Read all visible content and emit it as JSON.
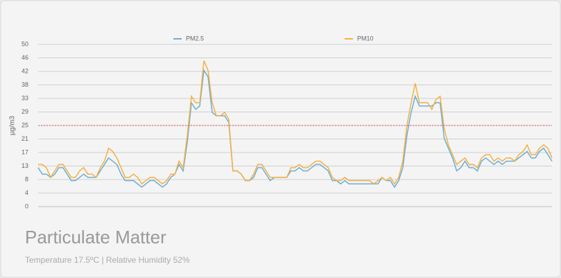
{
  "chart_data": {
    "type": "line",
    "title": "Particulate Matter",
    "subtitle": "Temperature 17.5ºC | Relative Humidity 52%",
    "y_label": "µg/m3",
    "ylim": [
      0,
      50
    ],
    "yticks": [
      0,
      {
        "value": 4.17,
        "label": "4"
      },
      {
        "value": 8.33,
        "label": "8"
      },
      {
        "value": 12.5,
        "label": "13"
      },
      {
        "value": 16.67,
        "label": "17"
      },
      {
        "value": 20.83,
        "label": "21"
      },
      25,
      {
        "value": 29.17,
        "label": "29"
      },
      {
        "value": 33.33,
        "label": "33"
      },
      {
        "value": 37.5,
        "label": "38"
      },
      {
        "value": 41.67,
        "label": "42"
      },
      {
        "value": 45.83,
        "label": "46"
      },
      50
    ],
    "grid": true,
    "threshold": 25,
    "threshold_color": "#d9534f",
    "series": [
      {
        "name": "PM2.5",
        "color": "#6aaed6",
        "values": [
          12,
          10,
          10,
          9,
          10,
          12,
          12,
          10,
          8,
          8,
          9,
          10,
          9,
          9,
          9,
          11,
          13,
          15,
          14,
          13,
          10,
          8,
          8,
          8,
          7,
          6,
          7,
          8,
          8,
          7,
          6,
          7,
          9,
          10,
          13,
          11,
          20,
          32,
          30,
          31,
          42,
          40,
          29,
          28,
          28,
          28,
          26,
          11,
          11,
          10,
          8,
          8,
          9,
          12,
          12,
          10,
          8,
          9,
          9,
          9,
          9,
          11,
          11,
          12,
          11,
          11,
          12,
          13,
          13,
          12,
          11,
          8,
          8,
          7,
          8,
          7,
          7,
          7,
          7,
          7,
          7,
          7,
          7,
          9,
          8,
          8,
          6,
          8,
          12,
          22,
          29,
          34,
          31,
          31,
          31,
          31,
          32,
          32,
          21,
          18,
          15,
          11,
          12,
          14,
          12,
          12,
          11,
          14,
          15,
          14,
          13,
          14,
          13,
          14,
          14,
          14,
          15,
          16,
          17,
          15,
          15,
          17,
          18,
          16,
          14
        ]
      },
      {
        "name": "PM10",
        "color": "#f5b041",
        "values": [
          13,
          13,
          12,
          9,
          11,
          13,
          13,
          11,
          9,
          9,
          11,
          12,
          10,
          10,
          9,
          12,
          14,
          18,
          17,
          15,
          12,
          9,
          9,
          10,
          9,
          7,
          8,
          9,
          9,
          8,
          7,
          8,
          10,
          10,
          14,
          12,
          22,
          34,
          32,
          32,
          45,
          42,
          32,
          28,
          28,
          29,
          27,
          11,
          11,
          10,
          8,
          8,
          10,
          13,
          13,
          11,
          9,
          9,
          9,
          9,
          9,
          12,
          12,
          13,
          12,
          12,
          13,
          14,
          14,
          13,
          12,
          9,
          8,
          8,
          9,
          8,
          8,
          8,
          8,
          8,
          8,
          7,
          8,
          9,
          8,
          9,
          7,
          9,
          14,
          25,
          32,
          38,
          32,
          32,
          32,
          30,
          33,
          34,
          24,
          19,
          16,
          13,
          14,
          15,
          13,
          13,
          12,
          15,
          16,
          16,
          14,
          15,
          14,
          15,
          15,
          14,
          16,
          17,
          19,
          16,
          16,
          18,
          19,
          18,
          15
        ]
      }
    ]
  }
}
